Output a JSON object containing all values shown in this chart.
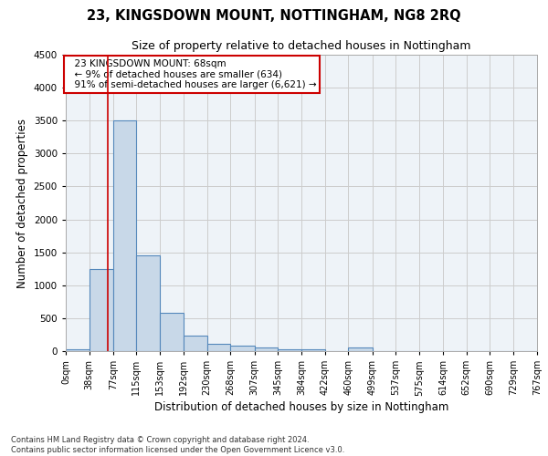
{
  "title": "23, KINGSDOWN MOUNT, NOTTINGHAM, NG8 2RQ",
  "subtitle": "Size of property relative to detached houses in Nottingham",
  "xlabel": "Distribution of detached houses by size in Nottingham",
  "ylabel": "Number of detached properties",
  "bin_edges": [
    0,
    38,
    77,
    115,
    153,
    192,
    230,
    268,
    307,
    345,
    384,
    422,
    460,
    499,
    537,
    575,
    614,
    652,
    690,
    729,
    767
  ],
  "bar_heights": [
    30,
    1250,
    3500,
    1450,
    575,
    230,
    110,
    80,
    55,
    30,
    30,
    0,
    60,
    0,
    0,
    0,
    0,
    0,
    0,
    0
  ],
  "bar_color": "#c8d8e8",
  "bar_edge_color": "#5588bb",
  "bar_edge_width": 0.8,
  "grid_color": "#cccccc",
  "background_color": "#eef3f8",
  "property_size": 68,
  "property_line_color": "#cc0000",
  "annotation_text": "  23 KINGSDOWN MOUNT: 68sqm\n  ← 9% of detached houses are smaller (634)\n  91% of semi-detached houses are larger (6,621) →",
  "annotation_box_color": "#ffffff",
  "annotation_border_color": "#cc0000",
  "ylim": [
    0,
    4500
  ],
  "yticks": [
    0,
    500,
    1000,
    1500,
    2000,
    2500,
    3000,
    3500,
    4000,
    4500
  ],
  "footnote": "Contains HM Land Registry data © Crown copyright and database right 2024.\nContains public sector information licensed under the Open Government Licence v3.0.",
  "title_fontsize": 10.5,
  "subtitle_fontsize": 9,
  "tick_label_fontsize": 7,
  "axis_label_fontsize": 8.5,
  "annotation_fontsize": 7.5
}
